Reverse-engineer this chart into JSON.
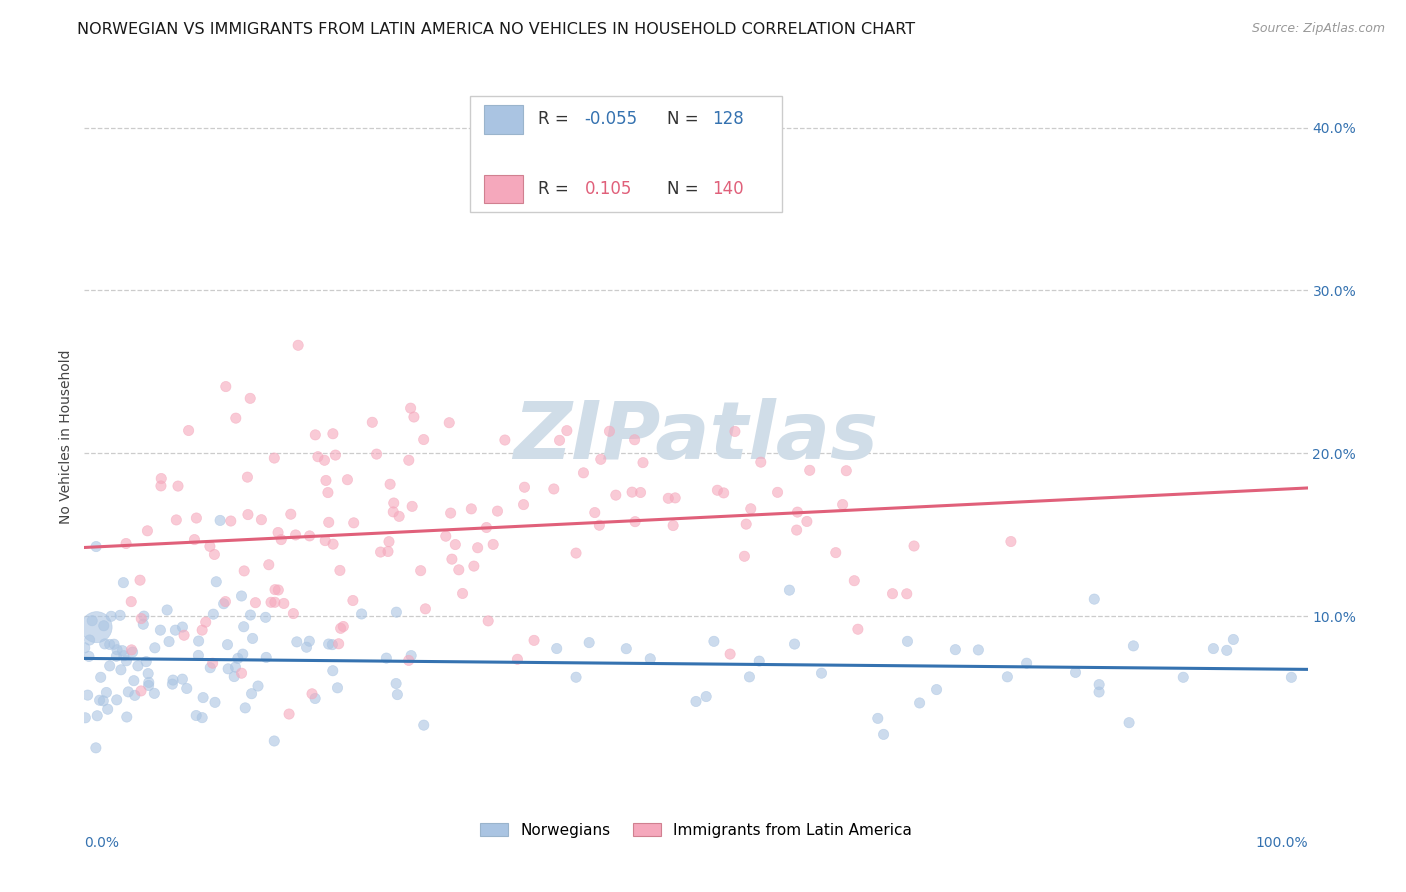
{
  "title": "NORWEGIAN VS IMMIGRANTS FROM LATIN AMERICA NO VEHICLES IN HOUSEHOLD CORRELATION CHART",
  "source": "Source: ZipAtlas.com",
  "ylabel": "No Vehicles in Household",
  "xlim": [
    0.0,
    1.0
  ],
  "ylim": [
    -0.02,
    0.44
  ],
  "yticks": [
    0.1,
    0.2,
    0.3,
    0.4
  ],
  "ytick_labels_right": [
    "10.0%",
    "20.0%",
    "30.0%",
    "40.0%"
  ],
  "xtick_left": "0.0%",
  "xtick_right": "100.0%",
  "norwegian_R": -0.055,
  "norwegian_N": 128,
  "latin_R": 0.105,
  "latin_N": 140,
  "norwegian_color": "#aac4e2",
  "latin_color": "#f5a8bc",
  "norwegian_line_color": "#3572b0",
  "latin_line_color": "#e0607a",
  "background_color": "#ffffff",
  "grid_color": "#cccccc",
  "watermark_color": "#d0dde8",
  "title_fontsize": 11.5,
  "axis_label_fontsize": 10,
  "tick_fontsize": 10,
  "legend_fontsize": 12
}
